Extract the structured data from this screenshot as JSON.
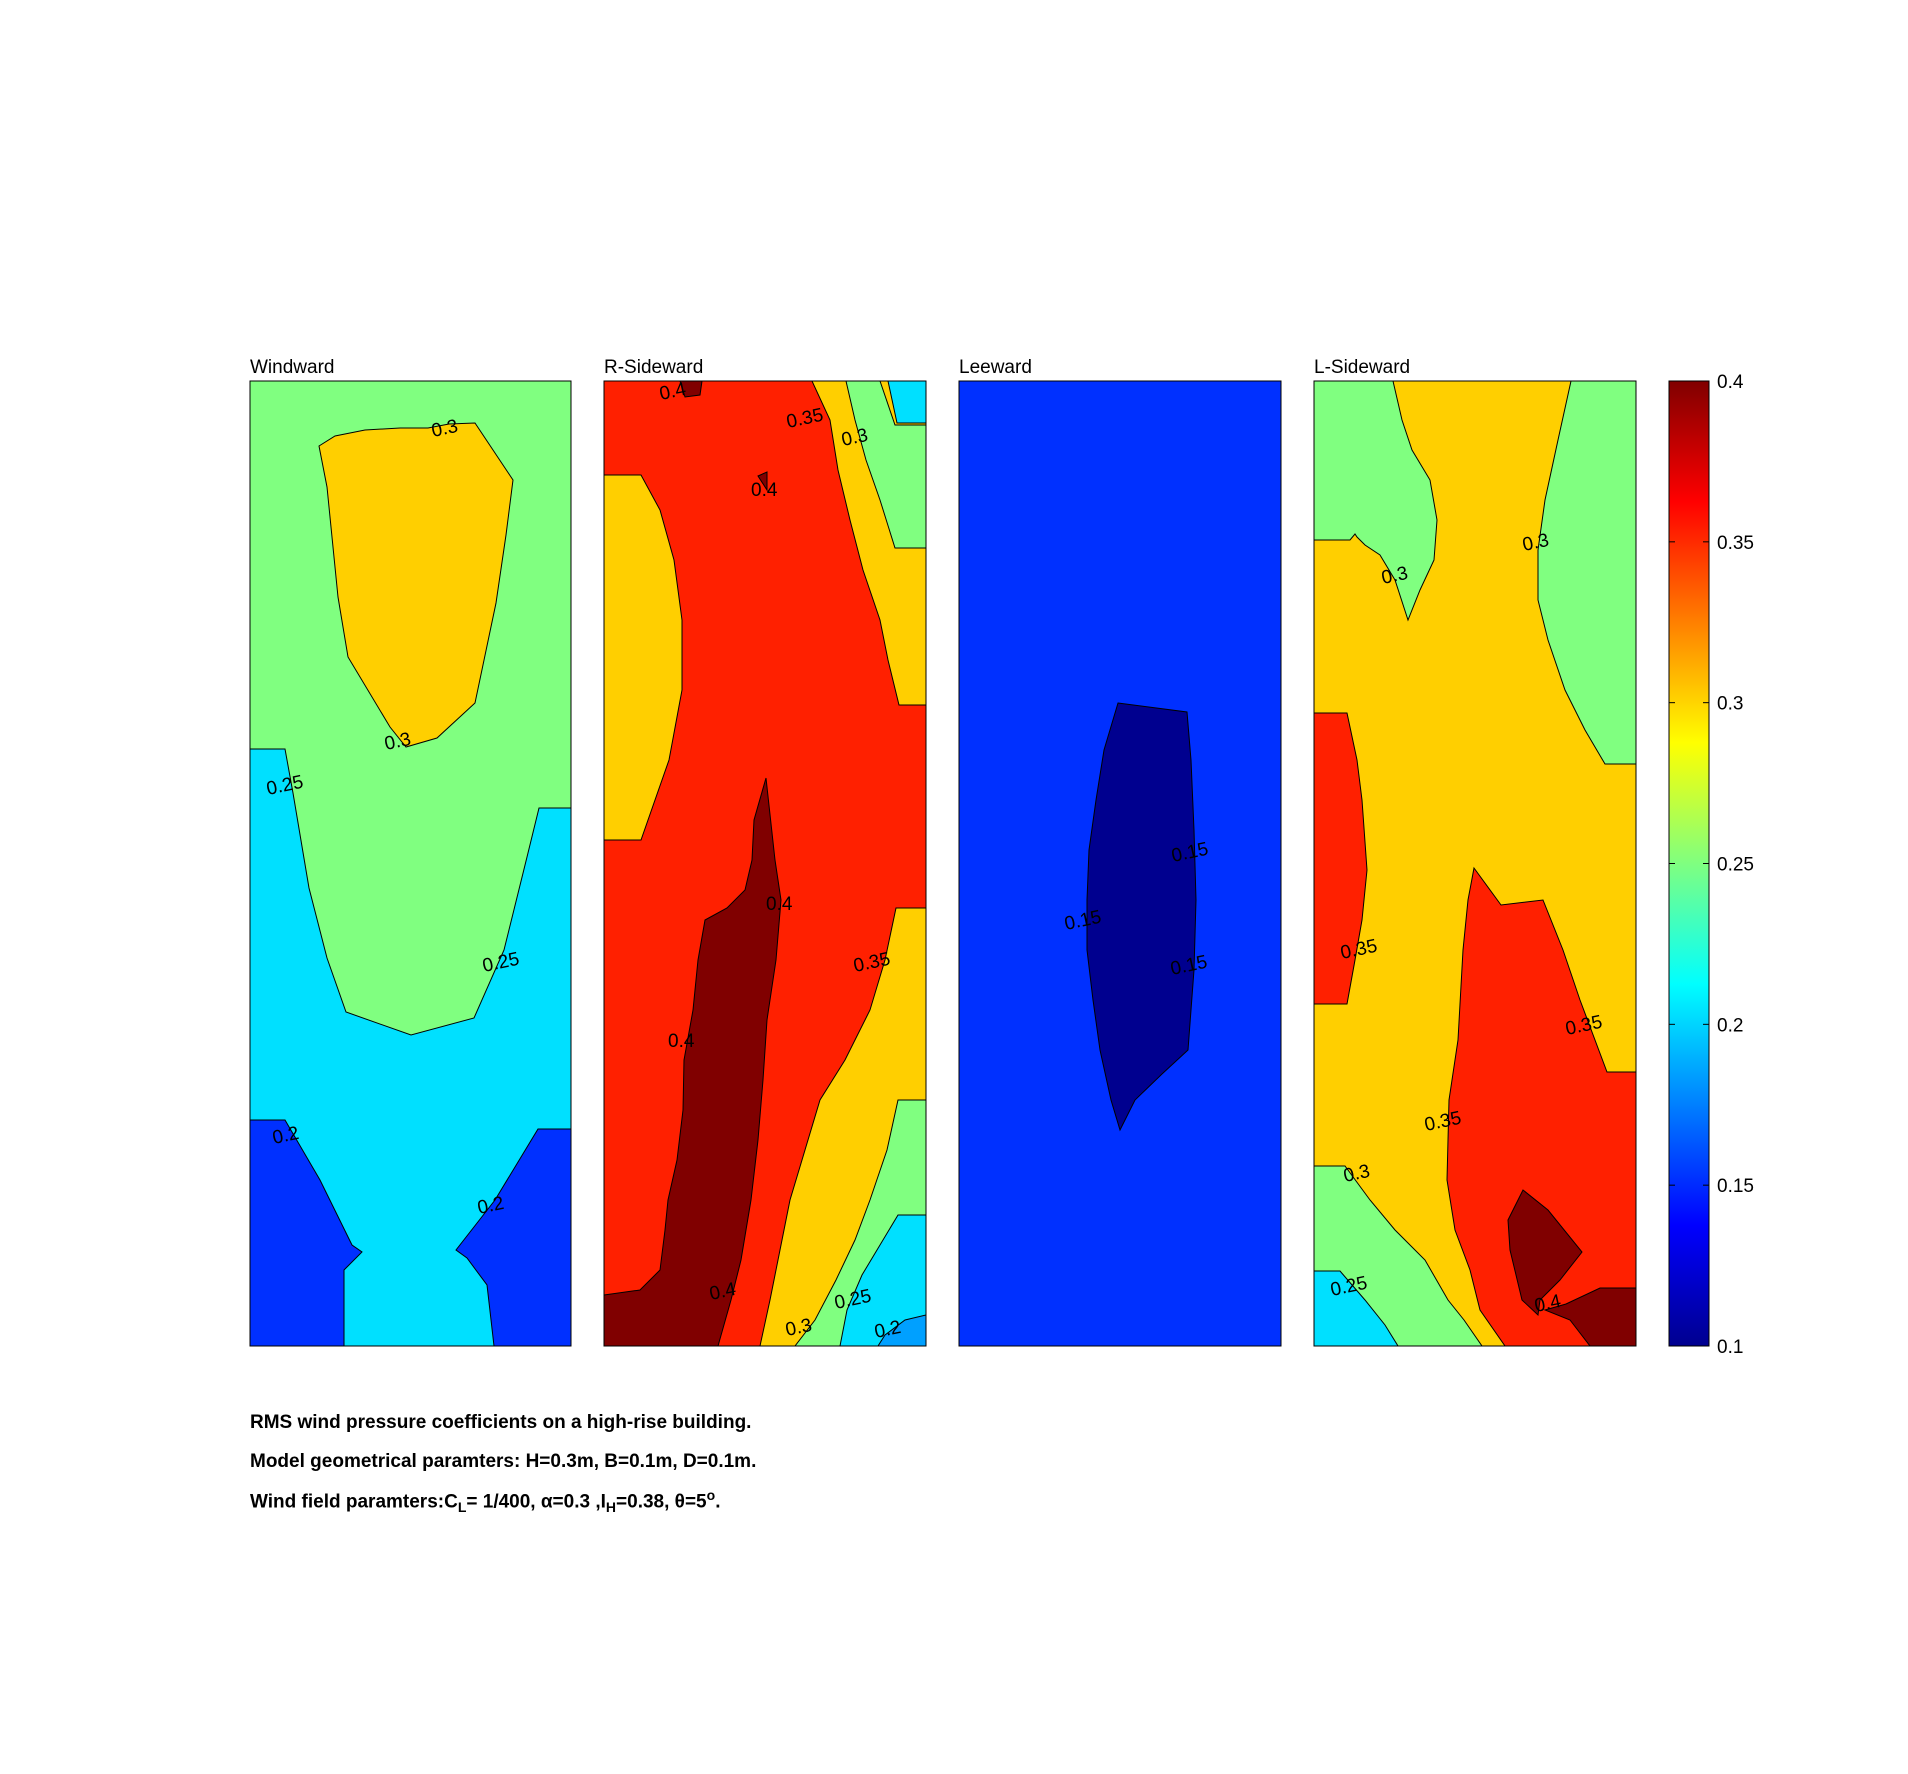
{
  "chart_data": {
    "type": "contour",
    "title": "",
    "colormap": "jet",
    "clim": [
      0.1,
      0.4
    ],
    "colorbar": {
      "ticks": [
        "0.4",
        "0.35",
        "0.3",
        "0.25",
        "0.2",
        "0.15",
        "0.1"
      ],
      "placement": "right"
    },
    "level_colors": {
      "0.10-0.15": "#00008f",
      "0.15-0.20": "#0030ff",
      "0.20-0.25": "#00e0ff",
      "0.25-0.30": "#80ff80",
      "0.30-0.35": "#ffcf00",
      "0.35-0.40": "#ff2000",
      ">0.40": "#800000"
    },
    "panels": [
      {
        "title": "Windward",
        "regions": [
          {
            "level": "0.25-0.30",
            "color": "#80ff80"
          },
          {
            "level": "0.30-0.35",
            "color": "#ffcf00"
          },
          {
            "level": "0.20-0.25",
            "color": "#00e0ff"
          },
          {
            "level": "0.15-0.20",
            "color": "#0030ff"
          }
        ],
        "contour_labels": [
          "0.3",
          "0.3",
          "0.25",
          "0.25",
          "0.2",
          "0.2"
        ]
      },
      {
        "title": "R-Sideward",
        "regions": [
          {
            "level": "0.35-0.40",
            "color": "#ff2000"
          },
          {
            "level": "0.30-0.35",
            "color": "#ffcf00"
          },
          {
            "level": "0.25-0.30",
            "color": "#80ff80"
          },
          {
            "level": "0.20-0.25",
            "color": "#00e0ff"
          },
          {
            "level": ">0.40",
            "color": "#800000"
          }
        ],
        "contour_labels": [
          "0.4",
          "0.35",
          "0.3",
          "0.4",
          "0.4",
          "0.35",
          "0.4",
          "0.4",
          "0.3",
          "0.25",
          "0.2"
        ]
      },
      {
        "title": "Leeward",
        "regions": [
          {
            "level": "0.15-0.20",
            "color": "#0030ff"
          },
          {
            "level": "0.10-0.15",
            "color": "#00008f"
          }
        ],
        "contour_labels": [
          "0.15",
          "0.15",
          "0.15"
        ]
      },
      {
        "title": "L-Sideward",
        "regions": [
          {
            "level": "0.30-0.35",
            "color": "#ffcf00"
          },
          {
            "level": "0.25-0.30",
            "color": "#80ff80"
          },
          {
            "level": "0.35-0.40",
            "color": "#ff2000"
          },
          {
            "level": "0.20-0.25",
            "color": "#00e0ff"
          },
          {
            "level": ">0.40",
            "color": "#800000"
          }
        ],
        "contour_labels": [
          "0.3",
          "0.3",
          "0.35",
          "0.35",
          "0.35",
          "0.3",
          "0.25",
          "0.4"
        ]
      }
    ]
  },
  "caption": {
    "line1": "RMS wind pressure coefficients on a high-rise building.",
    "line2": "Model geometrical paramters: H=0.3m, B=0.1m, D=0.1m.",
    "line3_prefix": "Wind field paramters:C",
    "line3_sub1": "L",
    "line3_mid1": "= 1/400, ",
    "line3_alpha": "α",
    "line3_mid2": "=0.3 ,I",
    "line3_sub2": "H",
    "line3_mid3": "=0.38, ",
    "line3_theta": "θ",
    "line3_mid4": "=5",
    "line3_sup": "o",
    "line3_end": "."
  }
}
